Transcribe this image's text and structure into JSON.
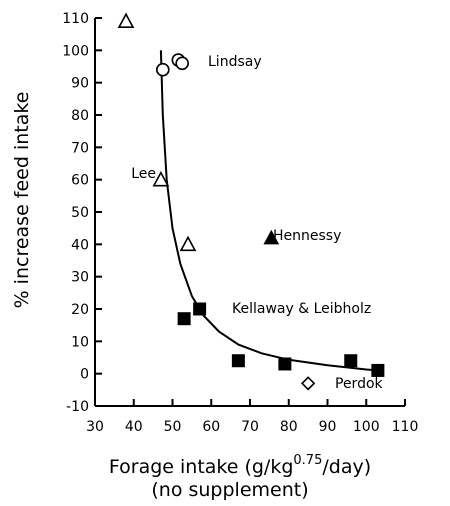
{
  "chart_data": {
    "type": "scatter",
    "xlabel_main": "Forage intake (g/kg",
    "xlabel_sup": "0.75",
    "xlabel_end": "/day)",
    "xlabel_line2": "(no supplement)",
    "ylabel": "% increase feed intake",
    "xlim": [
      30,
      110
    ],
    "ylim": [
      -10,
      110
    ],
    "x_ticks": [
      30,
      40,
      50,
      60,
      70,
      80,
      90,
      100,
      110
    ],
    "y_ticks": [
      -10,
      0,
      10,
      20,
      30,
      40,
      50,
      60,
      70,
      80,
      90,
      100,
      110
    ],
    "grid": false,
    "series": [
      {
        "name": "Lindsay",
        "marker": "circle-open",
        "points": [
          [
            47.5,
            94
          ],
          [
            51.5,
            97
          ],
          [
            52.5,
            96
          ]
        ]
      },
      {
        "name": "Lee",
        "marker": "triangle-open",
        "points": [
          [
            38,
            109
          ],
          [
            47,
            60
          ],
          [
            54,
            40
          ]
        ]
      },
      {
        "name": "Hennessy",
        "marker": "triangle-filled",
        "points": [
          [
            75.5,
            42
          ]
        ]
      },
      {
        "name": "Kellaway & Leibholz",
        "marker": "square-filled",
        "points": [
          [
            53,
            17
          ],
          [
            57,
            20
          ],
          [
            67,
            4
          ],
          [
            79,
            3
          ],
          [
            96,
            4
          ],
          [
            103,
            1
          ]
        ]
      },
      {
        "name": "Perdok",
        "marker": "diamond-open",
        "points": [
          [
            85,
            -3
          ]
        ]
      }
    ],
    "fitted_curve": [
      [
        47,
        100
      ],
      [
        47.5,
        80
      ],
      [
        48.5,
        60
      ],
      [
        50,
        45
      ],
      [
        52,
        34
      ],
      [
        55,
        24
      ],
      [
        58,
        18
      ],
      [
        62,
        13
      ],
      [
        67,
        9
      ],
      [
        73,
        6.3
      ],
      [
        80,
        4.3
      ],
      [
        90,
        2.6
      ],
      [
        100,
        1.3
      ],
      [
        103,
        1
      ]
    ],
    "annotations": [
      {
        "text": "Lindsay"
      },
      {
        "text": "Lee"
      },
      {
        "text": "Hennessy"
      },
      {
        "text": "Kellaway & Leibholz"
      },
      {
        "text": "Perdok"
      }
    ]
  }
}
